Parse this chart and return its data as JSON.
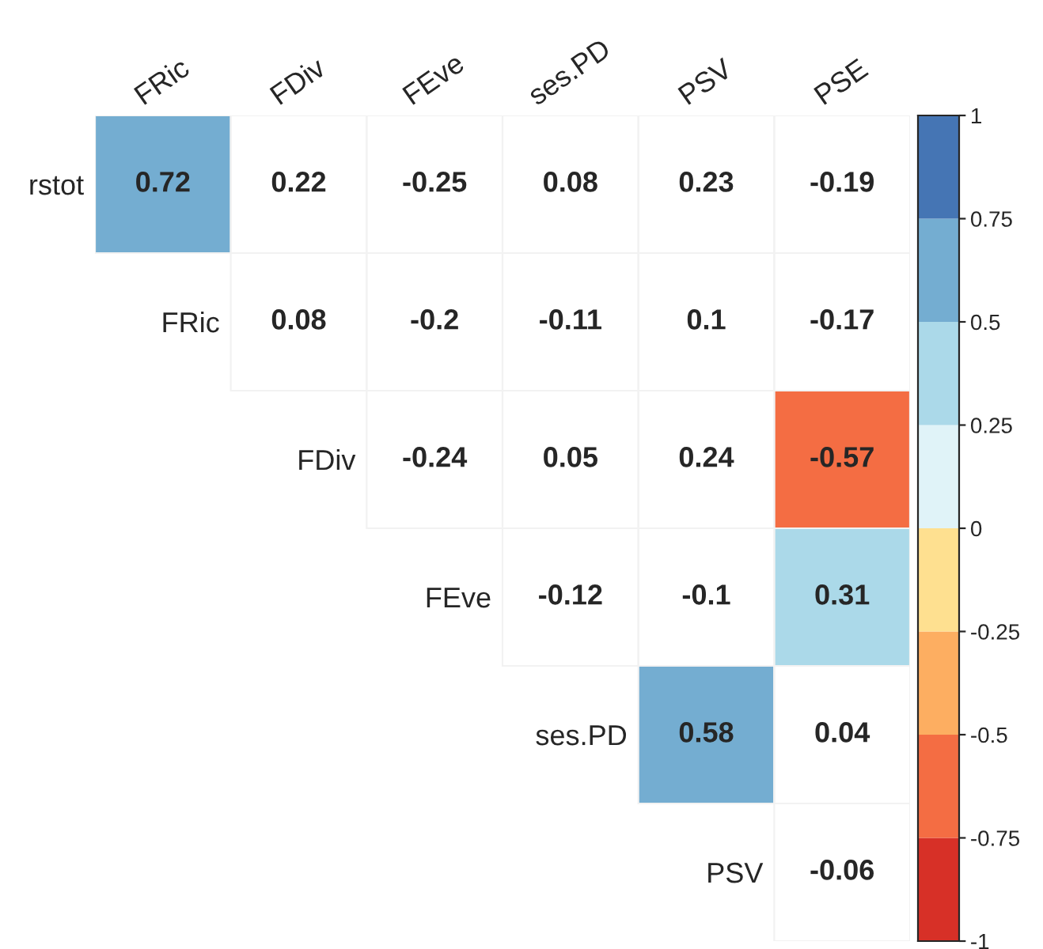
{
  "chart_data": {
    "type": "heatmap",
    "categories": [
      "FRic",
      "FDiv",
      "FEve",
      "ses.PD",
      "PSV",
      "PSE"
    ],
    "y_categories": [
      "rstot",
      "FRic",
      "FDiv",
      "FEve",
      "ses.PD",
      "PSV"
    ],
    "cells": [
      [
        0.72,
        null,
        null,
        null,
        null,
        null
      ],
      [
        null,
        null,
        null,
        null,
        null,
        null
      ],
      [
        null,
        null,
        null,
        null,
        null,
        -0.57
      ],
      [
        null,
        null,
        null,
        null,
        null,
        0.31
      ],
      [
        null,
        null,
        null,
        null,
        0.58,
        null
      ],
      [
        null,
        null,
        null,
        null,
        null,
        null
      ]
    ],
    "cell_labels": [
      [
        "0.72",
        "0.22",
        "-0.25",
        "0.08",
        "0.23",
        "-0.19"
      ],
      [
        null,
        "0.08",
        "-0.2",
        "-0.11",
        "0.1",
        "-0.17"
      ],
      [
        null,
        null,
        "-0.24",
        "0.05",
        "0.24",
        "-0.57"
      ],
      [
        null,
        null,
        null,
        "-0.12",
        "-0.1",
        "0.31"
      ],
      [
        null,
        null,
        null,
        null,
        "0.58",
        "0.04"
      ],
      [
        null,
        null,
        null,
        null,
        null,
        "-0.06"
      ]
    ],
    "clim": [
      -1,
      1
    ],
    "cticks": [
      -1,
      -0.75,
      -0.5,
      -0.25,
      0,
      0.25,
      0.5,
      0.75,
      1
    ]
  }
}
